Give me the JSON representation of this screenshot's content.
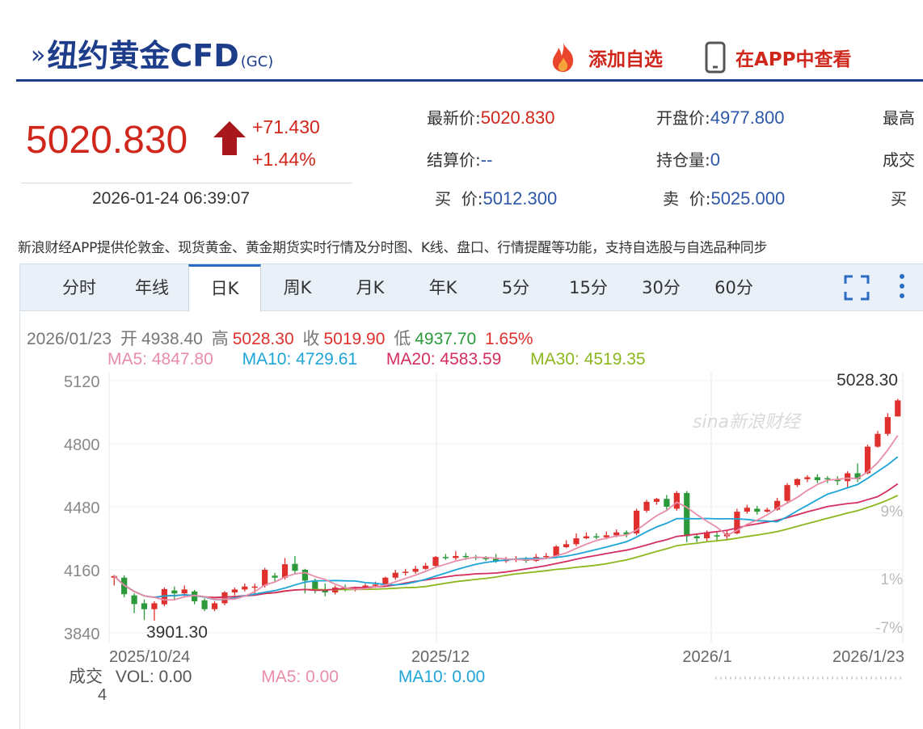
{
  "header": {
    "arrow": "»",
    "title": "纽约黄金CFD",
    "code": "(GC)",
    "add_watch_label": "添加自选",
    "view_app_label": "在APP中查看",
    "flame_color": "#e8452c",
    "accent": "#1d3d8a"
  },
  "quote": {
    "price": "5020.830",
    "change": "+71.430",
    "change_pct": "+1.44%",
    "timestamp": "2026-01-24 06:39:07",
    "direction": "up",
    "up_color": "#d0271c"
  },
  "stats": {
    "latest_label": "最新价:",
    "latest": "5020.830",
    "open_label": "开盘价:",
    "open": "4977.800",
    "high_label": "最高",
    "settle_label": "结算价:",
    "settle": "--",
    "oi_label": "持仓量:",
    "oi": "0",
    "volume_label": "成交",
    "bid_label": "买  价:",
    "bid": "5012.300",
    "ask_label": "卖  价:",
    "ask": "5025.000",
    "bid2_label": "买"
  },
  "notice": "新浪财经APP提供伦敦金、现货黄金、黄金期货实时行情及分时图、K线、盘口、行情提醒等功能，支持自选股与自选品种同步",
  "tabs": [
    "分时",
    "年线",
    "日K",
    "周K",
    "月K",
    "年K",
    "5分",
    "15分",
    "30分",
    "60分"
  ],
  "active_tab": "日K",
  "ohlc": {
    "date": "2026/01/23",
    "open_label": "开",
    "open": "4938.40",
    "high_label": "高",
    "high": "5028.30",
    "close_label": "收",
    "close": "5019.90",
    "low_label": "低",
    "low": "4937.70",
    "pct": "1.65%"
  },
  "ma": {
    "ma5": "MA5: 4847.80",
    "ma10": "MA10: 4729.61",
    "ma20": "MA20: 4583.59",
    "ma30": "MA30: 4519.35",
    "colors": {
      "ma5": "#e88ea8",
      "ma10": "#1ea5d8",
      "ma20": "#d42f5e",
      "ma30": "#8db71f"
    }
  },
  "volume": {
    "label": "成交",
    "vol": "VOL: 0.00",
    "ma5": "MA5: 0.00",
    "ma10": "MA10: 0.00",
    "max": "4"
  },
  "chart_data": {
    "type": "candlestick",
    "y_ticks": [
      "5120",
      "4800",
      "4480",
      "4160",
      "3840"
    ],
    "y_range": [
      3840,
      5120
    ],
    "right_ticks": [
      "9%",
      "1%",
      "-7%"
    ],
    "x_labels": [
      "2025/10/24",
      "2025/12",
      "2026/1",
      "2026/1/23"
    ],
    "max_label": "5028.30",
    "min_label": "3901.30",
    "watermark": "sina新浪财经",
    "up_color": "#e0302d",
    "down_color": "#2c9a3a",
    "candles": [
      [
        4120,
        4128,
        4080,
        4134
      ],
      [
        4120,
        4036,
        4020,
        4132
      ],
      [
        4030,
        3986,
        3940,
        4040
      ],
      [
        3990,
        3960,
        3905,
        4010
      ],
      [
        3960,
        3990,
        3901.3,
        4000
      ],
      [
        3985,
        4062,
        3975,
        4070
      ],
      [
        4055,
        4040,
        4010,
        4075
      ],
      [
        4040,
        4060,
        4025,
        4080
      ],
      [
        4050,
        4000,
        3985,
        4058
      ],
      [
        4005,
        3960,
        3950,
        4015
      ],
      [
        3960,
        3990,
        3950,
        4000
      ],
      [
        3990,
        4045,
        3980,
        4052
      ],
      [
        4045,
        4060,
        4030,
        4070
      ],
      [
        4060,
        4075,
        4050,
        4090
      ],
      [
        4070,
        4075,
        4035,
        4090
      ],
      [
        4080,
        4160,
        4070,
        4170
      ],
      [
        4130,
        4120,
        4100,
        4145
      ],
      [
        4120,
        4188,
        4110,
        4220
      ],
      [
        4190,
        4155,
        4140,
        4230
      ],
      [
        4160,
        4105,
        4040,
        4165
      ],
      [
        4100,
        4060,
        4040,
        4115
      ],
      [
        4060,
        4045,
        4025,
        4090
      ],
      [
        4045,
        4070,
        4035,
        4080
      ],
      [
        4070,
        4060,
        4050,
        4085
      ],
      [
        4060,
        4065,
        4050,
        4075
      ],
      [
        4065,
        4080,
        4060,
        4090
      ],
      [
        4080,
        4085,
        4070,
        4100
      ],
      [
        4085,
        4120,
        4080,
        4125
      ],
      [
        4120,
        4145,
        4110,
        4160
      ],
      [
        4145,
        4150,
        4130,
        4165
      ],
      [
        4150,
        4165,
        4140,
        4180
      ],
      [
        4165,
        4180,
        4160,
        4195
      ],
      [
        4180,
        4225,
        4175,
        4230
      ],
      [
        4225,
        4220,
        4210,
        4240
      ],
      [
        4220,
        4230,
        4210,
        4255
      ],
      [
        4230,
        4225,
        4210,
        4245
      ],
      [
        4225,
        4220,
        4210,
        4235
      ],
      [
        4220,
        4215,
        4205,
        4230
      ],
      [
        4215,
        4205,
        4195,
        4240
      ],
      [
        4205,
        4210,
        4195,
        4225
      ],
      [
        4210,
        4215,
        4200,
        4230
      ],
      [
        4215,
        4205,
        4195,
        4225
      ],
      [
        4205,
        4225,
        4200,
        4240
      ],
      [
        4225,
        4230,
        4215,
        4245
      ],
      [
        4230,
        4278,
        4225,
        4285
      ],
      [
        4275,
        4290,
        4270,
        4310
      ],
      [
        4290,
        4320,
        4280,
        4345
      ],
      [
        4320,
        4330,
        4315,
        4350
      ],
      [
        4330,
        4325,
        4315,
        4345
      ],
      [
        4325,
        4335,
        4315,
        4355
      ],
      [
        4335,
        4350,
        4325,
        4365
      ],
      [
        4350,
        4340,
        4325,
        4360
      ],
      [
        4345,
        4460,
        4335,
        4470
      ],
      [
        4460,
        4505,
        4450,
        4515
      ],
      [
        4505,
        4520,
        4490,
        4525
      ],
      [
        4520,
        4480,
        4465,
        4540
      ],
      [
        4470,
        4550,
        4460,
        4560
      ],
      [
        4550,
        4330,
        4300,
        4560
      ],
      [
        4330,
        4320,
        4300,
        4345
      ],
      [
        4320,
        4350,
        4305,
        4360
      ],
      [
        4335,
        4330,
        4305,
        4350
      ],
      [
        4330,
        4345,
        4310,
        4360
      ],
      [
        4345,
        4455,
        4340,
        4470
      ],
      [
        4455,
        4475,
        4445,
        4490
      ],
      [
        4470,
        4455,
        4440,
        4485
      ],
      [
        4455,
        4465,
        4450,
        4475
      ],
      [
        4465,
        4510,
        4460,
        4525
      ],
      [
        4510,
        4590,
        4500,
        4600
      ],
      [
        4590,
        4620,
        4580,
        4625
      ],
      [
        4620,
        4630,
        4605,
        4640
      ],
      [
        4630,
        4615,
        4600,
        4645
      ],
      [
        4625,
        4620,
        4600,
        4635
      ],
      [
        4620,
        4610,
        4590,
        4635
      ],
      [
        4610,
        4650,
        4580,
        4660
      ],
      [
        4650,
        4620,
        4605,
        4700
      ],
      [
        4650,
        4785,
        4645,
        4795
      ],
      [
        4785,
        4850,
        4780,
        4865
      ],
      [
        4850,
        4935,
        4840,
        4955
      ],
      [
        4938.4,
        5019.9,
        4937.7,
        5028.3
      ]
    ]
  }
}
